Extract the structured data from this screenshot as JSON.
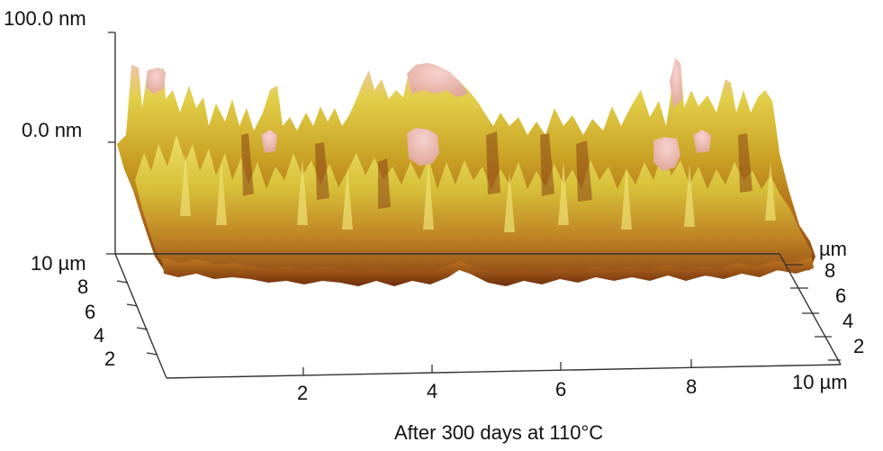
{
  "figure": {
    "z_axis": {
      "top_label": "100.0 nm",
      "mid_label": "0.0 nm"
    },
    "y_axis_left": {
      "labels": [
        "10 µm",
        "8",
        "6",
        "4",
        "2"
      ]
    },
    "y_axis_right": {
      "labels": [
        "µm",
        "8",
        "6",
        "4",
        "2"
      ]
    },
    "x_axis": {
      "labels": [
        "2",
        "4",
        "6",
        "8",
        "10 µm"
      ]
    },
    "caption": "After 300 days at 110°C"
  },
  "colors": {
    "surface_high": "#f2c6c0",
    "surface_mid": "#d8c030",
    "surface_yellow": "#e6d84a",
    "surface_orange": "#c87a1e",
    "surface_dark": "#7a3a10",
    "axis": "#333333"
  }
}
